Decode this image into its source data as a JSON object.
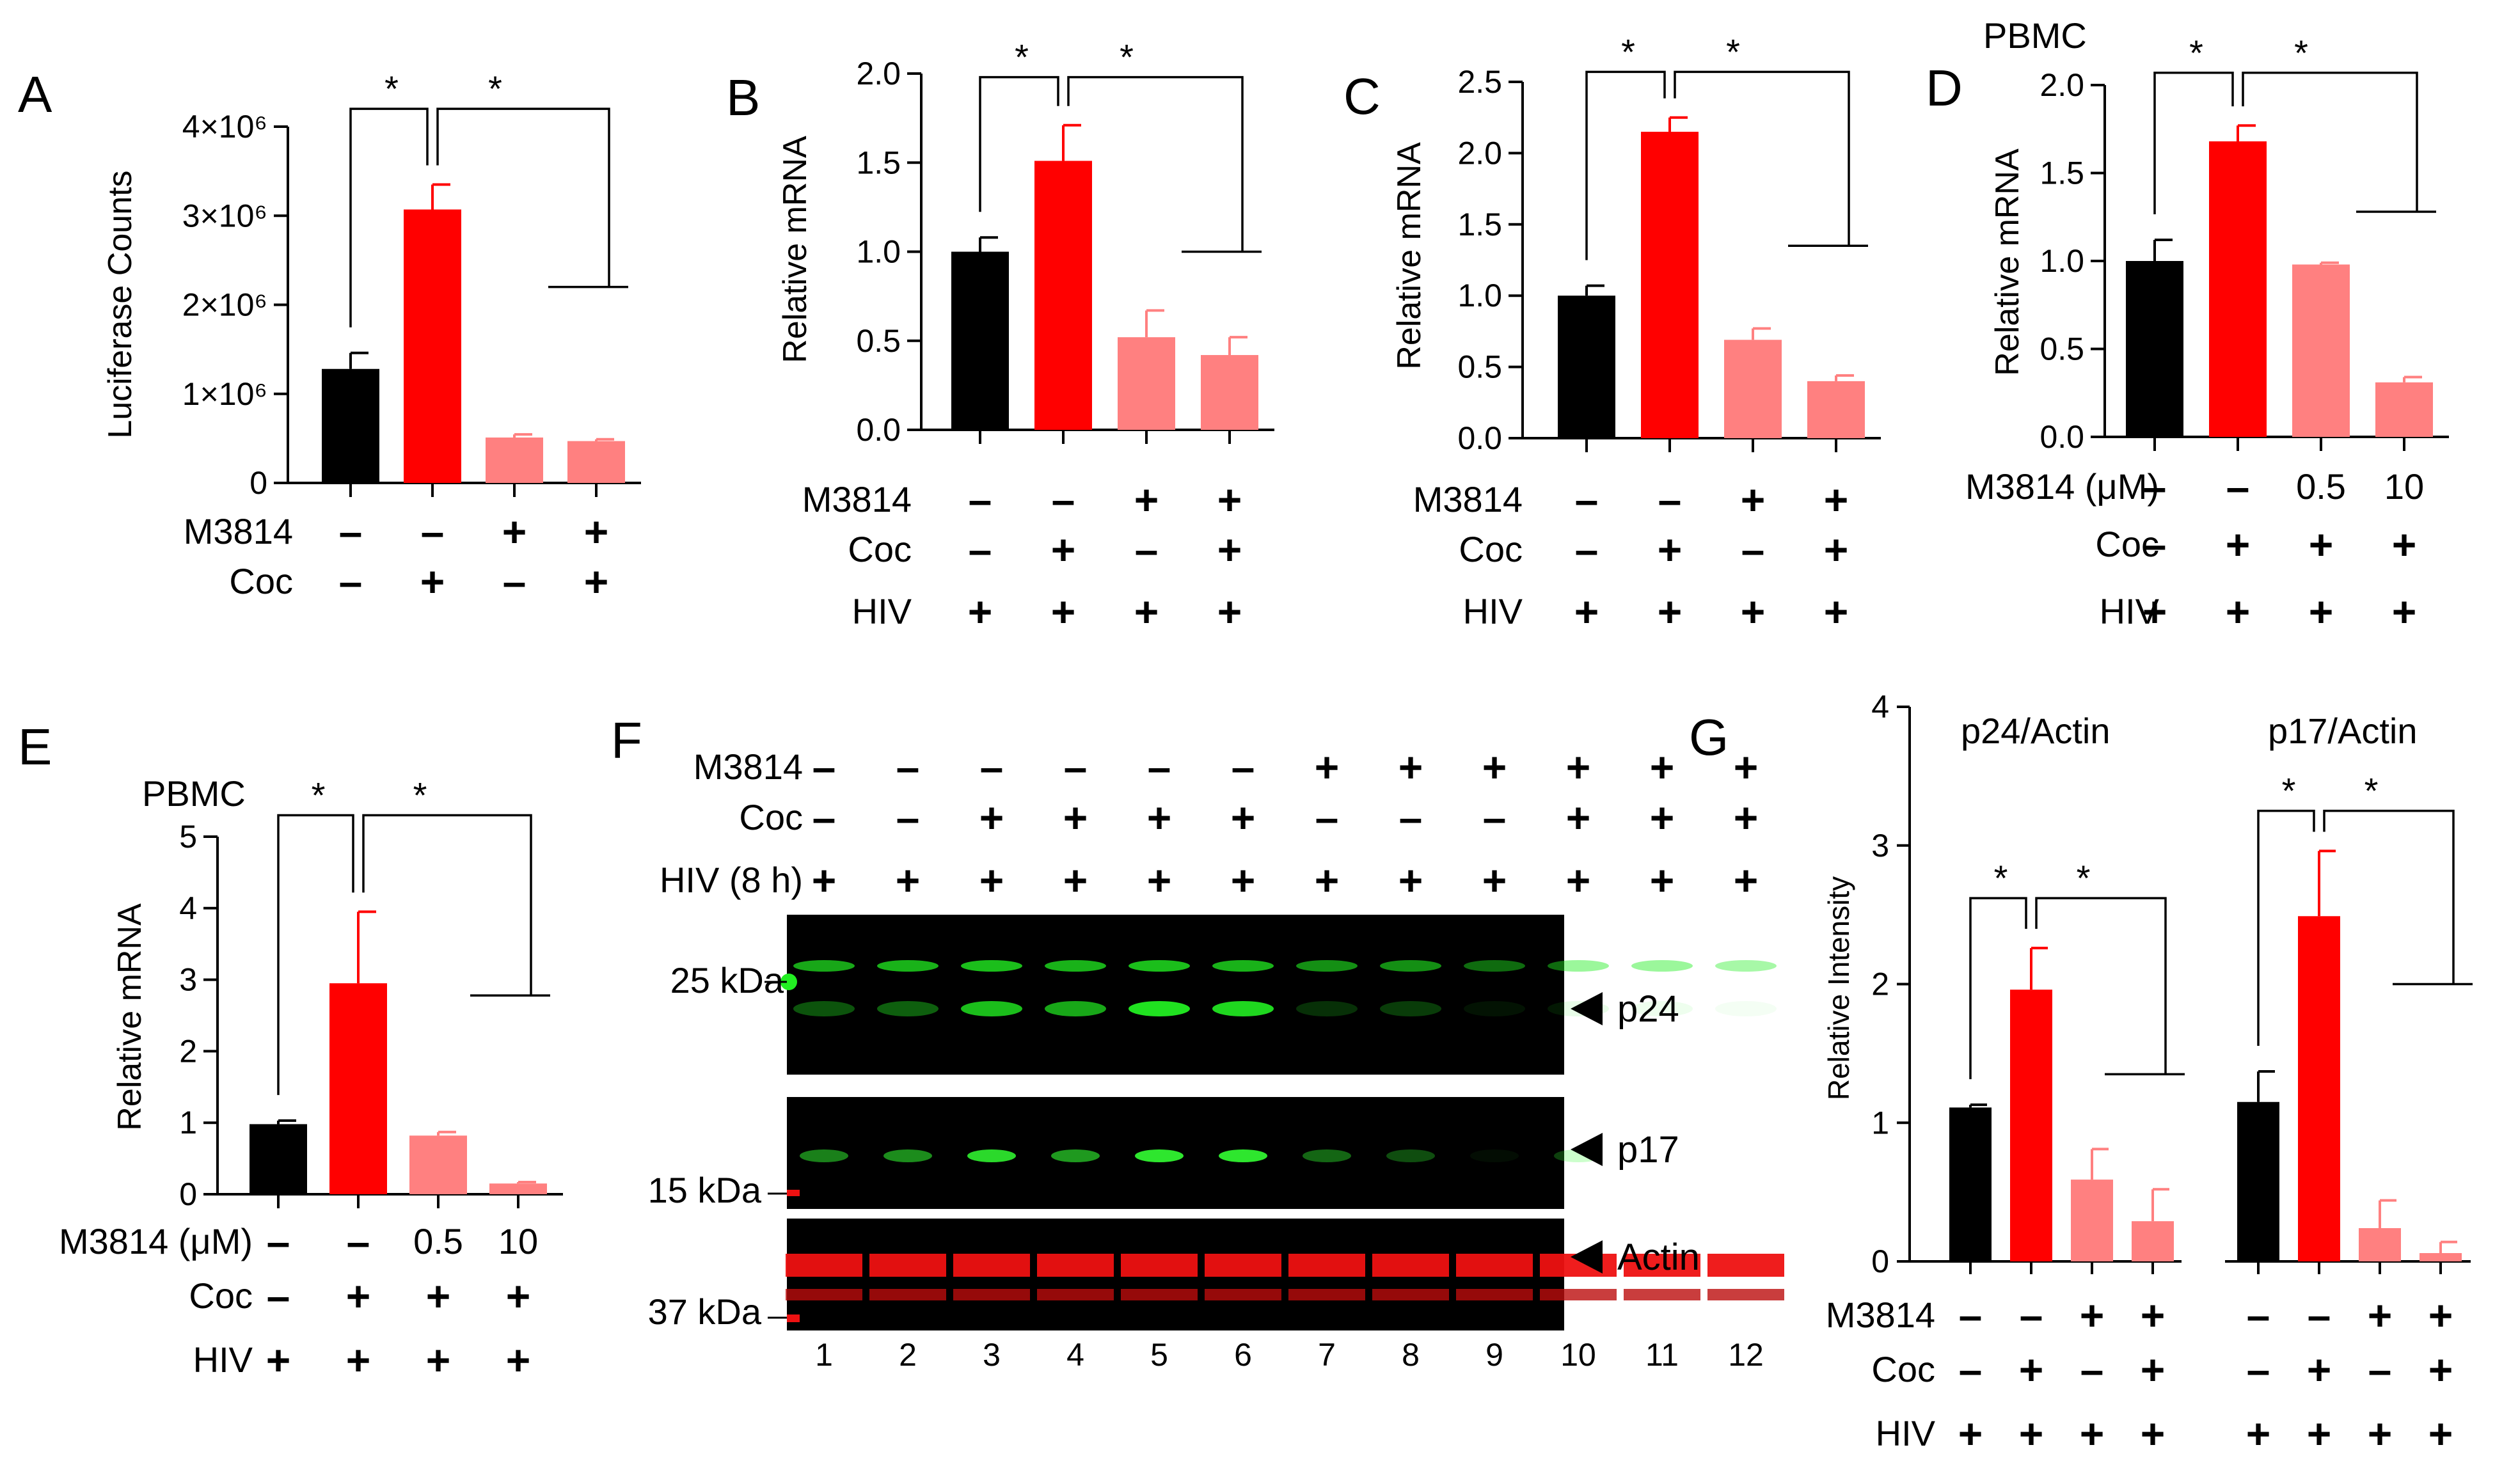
{
  "colors": {
    "control": "#000000",
    "cocaine": "#ff0000",
    "inhibitor": "#ff8080",
    "blot_green": "#22ee22",
    "blot_red": "#ee1111"
  },
  "chart_data": [
    {
      "panel": "A",
      "type": "bar",
      "ylabel": "Luciferase Counts",
      "ylim": [
        0,
        4000000
      ],
      "ticks": [
        {
          "v": 0,
          "t": "0"
        },
        {
          "v": 1000000,
          "t": "1×10⁶"
        },
        {
          "v": 2000000,
          "t": "2×10⁶"
        },
        {
          "v": 3000000,
          "t": "3×10⁶"
        },
        {
          "v": 4000000,
          "t": "4×10⁶"
        }
      ],
      "values": [
        1280000,
        3070000,
        510000,
        470000
      ],
      "errors": [
        180000,
        280000,
        35000,
        20000
      ],
      "colors": [
        "control",
        "cocaine",
        "inhibitor",
        "inhibitor"
      ],
      "sig": [
        {
          "a": 0,
          "b": 1,
          "y": 4200000,
          "star": "*"
        },
        {
          "a": 1,
          "r": 3,
          "y": 4200000,
          "end": 2200000,
          "star": "*"
        }
      ],
      "conditions": [
        {
          "label": "M3814",
          "values": [
            "–",
            "–",
            "+",
            "+"
          ]
        },
        {
          "label": "Coc",
          "values": [
            "–",
            "+",
            "–",
            "+"
          ]
        }
      ]
    },
    {
      "panel": "B",
      "type": "bar",
      "ylabel": "Relative mRNA",
      "ylim": [
        0,
        2.0
      ],
      "ticks": [
        {
          "v": 0,
          "t": "0.0"
        },
        {
          "v": 0.5,
          "t": "0.5"
        },
        {
          "v": 1.0,
          "t": "1.0"
        },
        {
          "v": 1.5,
          "t": "1.5"
        },
        {
          "v": 2.0,
          "t": "2.0"
        }
      ],
      "values": [
        1.0,
        1.51,
        0.52,
        0.42
      ],
      "errors": [
        0.08,
        0.2,
        0.15,
        0.1
      ],
      "colors": [
        "control",
        "cocaine",
        "inhibitor",
        "inhibitor"
      ],
      "sig": [
        {
          "a": 0,
          "b": 1,
          "y": 1.98,
          "star": "*"
        },
        {
          "a": 1,
          "r": 3,
          "y": 1.98,
          "end": 1.0,
          "star": "*"
        }
      ],
      "conditions": [
        {
          "label": "M3814",
          "values": [
            "–",
            "–",
            "+",
            "+"
          ]
        },
        {
          "label": "Coc",
          "values": [
            "–",
            "+",
            "–",
            "+"
          ]
        },
        {
          "label": "HIV",
          "values": [
            "+",
            "+",
            "+",
            "+"
          ]
        }
      ]
    },
    {
      "panel": "C",
      "type": "bar",
      "ylabel": "Relative mRNA",
      "ylim": [
        0,
        2.5
      ],
      "ticks": [
        {
          "v": 0,
          "t": "0.0"
        },
        {
          "v": 0.5,
          "t": "0.5"
        },
        {
          "v": 1.0,
          "t": "1.0"
        },
        {
          "v": 1.5,
          "t": "1.5"
        },
        {
          "v": 2.0,
          "t": "2.0"
        },
        {
          "v": 2.5,
          "t": "2.5"
        }
      ],
      "values": [
        1.0,
        2.15,
        0.69,
        0.4
      ],
      "errors": [
        0.07,
        0.1,
        0.08,
        0.04
      ],
      "colors": [
        "control",
        "cocaine",
        "inhibitor",
        "inhibitor"
      ],
      "sig": [
        {
          "a": 0,
          "b": 1,
          "y": 2.57,
          "star": "*"
        },
        {
          "a": 1,
          "r": 3,
          "y": 2.57,
          "end": 1.35,
          "star": "*"
        }
      ],
      "conditions": [
        {
          "label": "M3814",
          "values": [
            "–",
            "–",
            "+",
            "+"
          ]
        },
        {
          "label": "Coc",
          "values": [
            "–",
            "+",
            "–",
            "+"
          ]
        },
        {
          "label": "HIV",
          "values": [
            "+",
            "+",
            "+",
            "+"
          ]
        }
      ]
    },
    {
      "panel": "D",
      "type": "bar",
      "ylabel": "Relative mRNA",
      "ylim": [
        0,
        2.0
      ],
      "inset": "PBMC",
      "ticks": [
        {
          "v": 0,
          "t": "0.0"
        },
        {
          "v": 0.5,
          "t": "0.5"
        },
        {
          "v": 1.0,
          "t": "1.0"
        },
        {
          "v": 1.5,
          "t": "1.5"
        },
        {
          "v": 2.0,
          "t": "2.0"
        }
      ],
      "values": [
        1.0,
        1.68,
        0.98,
        0.31
      ],
      "errors": [
        0.12,
        0.09,
        0.01,
        0.03
      ],
      "colors": [
        "control",
        "cocaine",
        "inhibitor",
        "inhibitor"
      ],
      "sig": [
        {
          "a": 0,
          "b": 1,
          "y": 2.07,
          "star": "*"
        },
        {
          "a": 1,
          "r": 3,
          "y": 2.07,
          "end": 1.28,
          "star": "*"
        }
      ],
      "conditions": [
        {
          "label": "M3814 (μM)",
          "values": [
            "–",
            "–",
            "0.5",
            "10"
          ]
        },
        {
          "label": "Coc",
          "values": [
            "–",
            "+",
            "+",
            "+"
          ]
        },
        {
          "label": "HIV",
          "values": [
            "+",
            "+",
            "+",
            "+"
          ]
        }
      ]
    },
    {
      "panel": "E",
      "type": "bar",
      "ylabel": "Relative mRNA",
      "ylim": [
        0,
        5
      ],
      "inset": "PBMC",
      "ticks": [
        {
          "v": 0,
          "t": "0"
        },
        {
          "v": 1,
          "t": "1"
        },
        {
          "v": 2,
          "t": "2"
        },
        {
          "v": 3,
          "t": "3"
        },
        {
          "v": 4,
          "t": "4"
        },
        {
          "v": 5,
          "t": "5"
        }
      ],
      "values": [
        0.98,
        2.95,
        0.82,
        0.15
      ],
      "errors": [
        0.05,
        1.0,
        0.05,
        0.02
      ],
      "colors": [
        "control",
        "cocaine",
        "inhibitor",
        "inhibitor"
      ],
      "sig": [
        {
          "a": 0,
          "b": 1,
          "y": 5.3,
          "star": "*"
        },
        {
          "a": 1,
          "r": 3,
          "y": 5.3,
          "end": 2.78,
          "star": "*"
        }
      ],
      "conditions": [
        {
          "label": "M3814 (μM)",
          "values": [
            "–",
            "–",
            "0.5",
            "10"
          ]
        },
        {
          "label": "Coc",
          "values": [
            "–",
            "+",
            "+",
            "+"
          ]
        },
        {
          "label": "HIV",
          "values": [
            "+",
            "+",
            "+",
            "+"
          ]
        }
      ]
    },
    {
      "panel": "G",
      "type": "bar",
      "ylabel": "Relative Intensity",
      "ylim": [
        0,
        4
      ],
      "ticks": [
        {
          "v": 0,
          "t": "0"
        },
        {
          "v": 1,
          "t": "1"
        },
        {
          "v": 2,
          "t": "2"
        },
        {
          "v": 3,
          "t": "3"
        },
        {
          "v": 4,
          "t": "4"
        }
      ],
      "groups": [
        {
          "title": "p24/Actin",
          "values": [
            1.11,
            1.96,
            0.59,
            0.29
          ],
          "errors": [
            0.02,
            0.3,
            0.22,
            0.23
          ],
          "sig": [
            {
              "a": 0,
              "b": 1,
              "y": 2.62,
              "star": "*"
            },
            {
              "a": 1,
              "r": 3,
              "y": 2.62,
              "end": 1.35,
              "star": "*"
            }
          ]
        },
        {
          "title": "p17/Actin",
          "values": [
            1.15,
            2.49,
            0.24,
            0.06
          ],
          "errors": [
            0.22,
            0.47,
            0.2,
            0.08
          ],
          "sig": [
            {
              "a": 0,
              "b": 1,
              "y": 3.25,
              "star": "*"
            },
            {
              "a": 1,
              "r": 3,
              "y": 3.25,
              "end": 2.0,
              "star": "*"
            }
          ]
        }
      ],
      "colors": [
        "control",
        "cocaine",
        "inhibitor",
        "inhibitor"
      ],
      "conditions": [
        {
          "label": "M3814",
          "values": [
            "–",
            "–",
            "+",
            "+",
            "–",
            "–",
            "+",
            "+"
          ]
        },
        {
          "label": "Coc",
          "values": [
            "–",
            "+",
            "–",
            "+",
            "–",
            "+",
            "–",
            "+"
          ]
        },
        {
          "label": "HIV",
          "values": [
            "+",
            "+",
            "+",
            "+",
            "+",
            "+",
            "+",
            "+"
          ]
        }
      ]
    }
  ],
  "blot": {
    "panel": "F",
    "conditions": [
      {
        "label": "M3814",
        "values": [
          "–",
          "–",
          "–",
          "–",
          "–",
          "–",
          "+",
          "+",
          "+",
          "+",
          "+",
          "+"
        ]
      },
      {
        "label": "Coc",
        "values": [
          "–",
          "–",
          "+",
          "+",
          "+",
          "+",
          "–",
          "–",
          "–",
          "+",
          "+",
          "+"
        ]
      },
      {
        "label": "HIV (8 h)",
        "values": [
          "+",
          "+",
          "+",
          "+",
          "+",
          "+",
          "+",
          "+",
          "+",
          "+",
          "+",
          "+"
        ]
      }
    ],
    "markers": [
      "25 kDa",
      "15 kDa",
      "37 kDa"
    ],
    "bands": [
      "p24",
      "p17",
      "Actin"
    ],
    "lanes": [
      "1",
      "2",
      "3",
      "4",
      "5",
      "6",
      "7",
      "8",
      "9",
      "10",
      "11",
      "12"
    ],
    "p24_intensity": [
      0.35,
      0.4,
      0.8,
      0.7,
      0.95,
      0.9,
      0.2,
      0.25,
      0.08,
      0.1,
      0.08,
      0.05
    ],
    "p17_intensity": [
      0.5,
      0.55,
      0.85,
      0.6,
      0.9,
      0.9,
      0.4,
      0.3,
      0.05,
      0.25,
      0.0,
      0.0
    ],
    "upper_band_intensity": [
      0.7,
      0.75,
      0.8,
      0.75,
      0.8,
      0.75,
      0.6,
      0.6,
      0.45,
      0.45,
      0.45,
      0.4
    ]
  }
}
